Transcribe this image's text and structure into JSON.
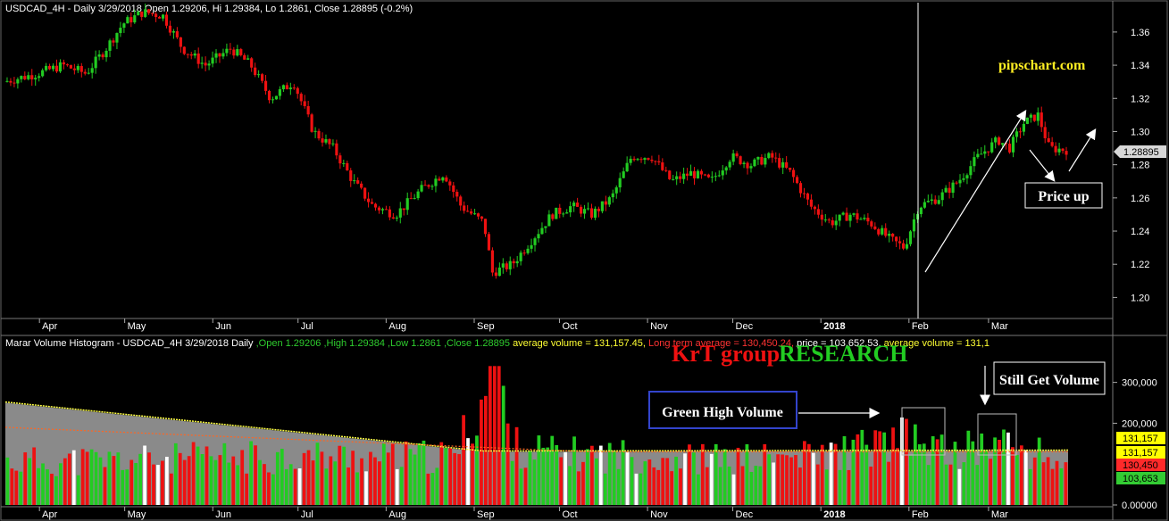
{
  "price_panel": {
    "header": "USDCAD_4H - Daily 3/29/2018 Open 1.29206, Hi 1.29384, Lo 1.2861, Close 1.28895 (-0.2%)",
    "current_price_label": "1.28895",
    "watermark": "pipschart.com",
    "annotation": "Price up"
  },
  "volume_panel": {
    "header_parts": [
      {
        "text": "Marar Volume Histogram - USDCAD_4H  3/29/2018  Daily ",
        "color": "#ffffff"
      },
      {
        "text": ",Open 1.29206 ,High 1.29384 ,Low 1.2861 ,Close 1.28895 ",
        "color": "#2ecc2e"
      },
      {
        "text": "average volume = 131,157.45, ",
        "color": "#ffff33"
      },
      {
        "text": "Long term average = 130,450.24, ",
        "color": "#ff3333"
      },
      {
        "text": "price = 103,652.53, ",
        "color": "#ffffff"
      },
      {
        "text": "average volume = 131,1",
        "color": "#ffff33"
      }
    ],
    "brand_left": "KrT group",
    "brand_right": "RESEARCH",
    "callout_green": "Green High Volume",
    "callout_still": "Still Get Volume",
    "value_labels": [
      {
        "text": "131,157",
        "bg": "#ffff00",
        "fg": "#000000",
        "value": 131157
      },
      {
        "text": "131,157",
        "bg": "#ffff00",
        "fg": "#000000",
        "value": 131157
      },
      {
        "text": "130,450",
        "bg": "#ff2a2a",
        "fg": "#000000",
        "value": 130450
      },
      {
        "text": "103,653",
        "bg": "#33cc33",
        "fg": "#000000",
        "value": 103653
      }
    ]
  },
  "colors": {
    "up": "#22cc22",
    "down": "#ee1111",
    "neutral": "#ffffff",
    "avg_line": "#ffff44",
    "long_avg_line": "#ff6622",
    "gray_fill": "#8a8a8a"
  },
  "chart_data": [
    {
      "type": "candlestick",
      "title": "USDCAD_4H - Daily 3/29/2018",
      "x_month_labels": [
        "Apr",
        "May",
        "Jun",
        "Jul",
        "Aug",
        "Sep",
        "Oct",
        "Nov",
        "Dec",
        "2018",
        "Feb",
        "Mar"
      ],
      "y_ticks": [
        "1.36",
        "1.34",
        "1.32",
        "1.30",
        "1.28",
        "1.26",
        "1.24",
        "1.22",
        "1.20"
      ],
      "ylim": [
        1.19,
        1.375
      ],
      "price_path": [
        [
          "2017-03-20",
          1.33
        ],
        [
          "2017-04-01",
          1.335
        ],
        [
          "2017-04-10",
          1.34
        ],
        [
          "2017-04-18",
          1.335
        ],
        [
          "2017-04-25",
          1.35
        ],
        [
          "2017-05-01",
          1.365
        ],
        [
          "2017-05-08",
          1.372
        ],
        [
          "2017-05-15",
          1.37
        ],
        [
          "2017-05-22",
          1.35
        ],
        [
          "2017-05-30",
          1.34
        ],
        [
          "2017-06-08",
          1.35
        ],
        [
          "2017-06-15",
          1.34
        ],
        [
          "2017-06-22",
          1.32
        ],
        [
          "2017-06-30",
          1.33
        ],
        [
          "2017-07-07",
          1.3
        ],
        [
          "2017-07-14",
          1.29
        ],
        [
          "2017-07-21",
          1.27
        ],
        [
          "2017-07-28",
          1.255
        ],
        [
          "2017-08-05",
          1.25
        ],
        [
          "2017-08-14",
          1.265
        ],
        [
          "2017-08-22",
          1.275
        ],
        [
          "2017-08-28",
          1.255
        ],
        [
          "2017-09-05",
          1.245
        ],
        [
          "2017-09-08",
          1.215
        ],
        [
          "2017-09-15",
          1.22
        ],
        [
          "2017-09-22",
          1.235
        ],
        [
          "2017-09-29",
          1.25
        ],
        [
          "2017-10-06",
          1.255
        ],
        [
          "2017-10-13",
          1.25
        ],
        [
          "2017-10-20",
          1.26
        ],
        [
          "2017-10-27",
          1.285
        ],
        [
          "2017-11-03",
          1.285
        ],
        [
          "2017-11-10",
          1.27
        ],
        [
          "2017-11-17",
          1.275
        ],
        [
          "2017-11-24",
          1.27
        ],
        [
          "2017-12-01",
          1.285
        ],
        [
          "2017-12-08",
          1.28
        ],
        [
          "2017-12-15",
          1.285
        ],
        [
          "2017-12-22",
          1.275
        ],
        [
          "2017-12-29",
          1.255
        ],
        [
          "2018-01-05",
          1.245
        ],
        [
          "2018-01-12",
          1.25
        ],
        [
          "2018-01-19",
          1.245
        ],
        [
          "2018-01-26",
          1.235
        ],
        [
          "2018-01-31",
          1.23
        ],
        [
          "2018-02-05",
          1.255
        ],
        [
          "2018-02-12",
          1.26
        ],
        [
          "2018-02-19",
          1.27
        ],
        [
          "2018-02-26",
          1.285
        ],
        [
          "2018-03-05",
          1.295
        ],
        [
          "2018-03-09",
          1.29
        ],
        [
          "2018-03-14",
          1.305
        ],
        [
          "2018-03-19",
          1.31
        ],
        [
          "2018-03-23",
          1.29
        ],
        [
          "2018-03-29",
          1.28895
        ]
      ]
    },
    {
      "type": "bar",
      "title": "Marar Volume Histogram - USDCAD_4H",
      "y_ticks": [
        "300,000",
        "200,000",
        "0.00000"
      ],
      "ylim": [
        0,
        380000
      ],
      "average_volume": 131157.45,
      "long_term_average": 130450.24,
      "last_volume": 103652.53,
      "volume_profile": [
        [
          "2017-03-20",
          110000
        ],
        [
          "2017-05-01",
          115000
        ],
        [
          "2017-06-01",
          120000
        ],
        [
          "2017-07-01",
          125000
        ],
        [
          "2017-08-01",
          120000
        ],
        [
          "2017-08-25",
          125000
        ],
        [
          "2017-09-08",
          340000
        ],
        [
          "2017-09-15",
          150000
        ],
        [
          "2017-10-01",
          130000
        ],
        [
          "2017-11-01",
          125000
        ],
        [
          "2017-12-01",
          115000
        ],
        [
          "2018-01-01",
          125000
        ],
        [
          "2018-02-01",
          170000
        ],
        [
          "2018-02-15",
          130000
        ],
        [
          "2018-03-05",
          160000
        ],
        [
          "2018-03-29",
          103653
        ]
      ]
    }
  ]
}
